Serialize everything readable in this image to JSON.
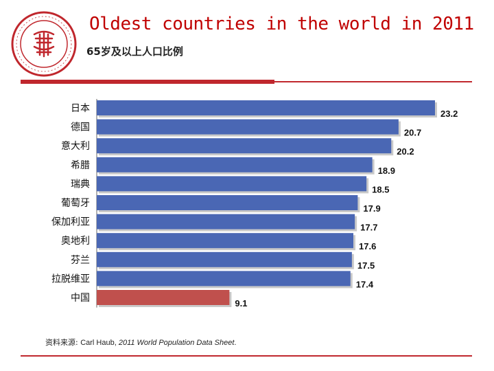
{
  "header": {
    "title": "Oldest countries in the world in 2011",
    "subtitle": "65岁及以上人口比例"
  },
  "colors": {
    "accent": "#c0272d",
    "bar_default": "#4a67b4",
    "bar_highlight": "#c0504d",
    "title": "#c00000"
  },
  "chart_data": {
    "type": "bar",
    "orientation": "horizontal",
    "categories": [
      "日本",
      "德国",
      "意大利",
      "希腊",
      "瑞典",
      "葡萄牙",
      "保加利亚",
      "奥地利",
      "芬兰",
      "拉脱维亚",
      "中国"
    ],
    "values": [
      23.2,
      20.7,
      20.2,
      18.9,
      18.5,
      17.9,
      17.7,
      17.6,
      17.5,
      17.4,
      9.1
    ],
    "data_labels": [
      "23.2",
      "20.7",
      "20.2",
      "18.9",
      "18.5",
      "17.9",
      "17.7",
      "17.6",
      "17.5",
      "17.4",
      "9.1"
    ],
    "highlight_category": "中国",
    "xlim": [
      0,
      23.2
    ],
    "grid": false,
    "legend": "none"
  },
  "source": {
    "prefix": "资料来源: ",
    "author": "Carl Haub, ",
    "work": "2011 World Population Data Sheet",
    "suffix": "."
  },
  "logo": {
    "icon": "university-seal-icon"
  }
}
